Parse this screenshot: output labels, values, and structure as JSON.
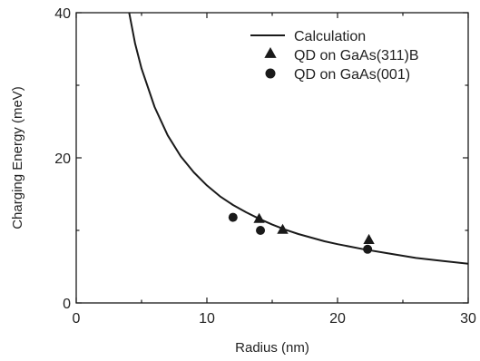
{
  "chart_data": {
    "type": "scatter",
    "xlabel": "Radius (nm)",
    "ylabel": "Charging Energy (meV)",
    "xlim": [
      0,
      30
    ],
    "ylim": [
      0,
      40
    ],
    "x_ticks": [
      "0",
      "10",
      "20",
      "30"
    ],
    "y_ticks": [
      "0",
      "20",
      "40"
    ],
    "grid": false,
    "legend_position": "top-right",
    "series": [
      {
        "name": "Calculation",
        "kind": "line",
        "x": [
          4.0,
          4.5,
          5,
          6,
          7,
          8,
          9,
          10,
          11,
          12,
          13,
          14,
          15,
          16,
          17,
          18,
          19,
          20,
          22,
          24,
          26,
          28,
          30
        ],
        "y": [
          40.5,
          35.8,
          32.3,
          27.0,
          23.1,
          20.2,
          18.0,
          16.2,
          14.7,
          13.5,
          12.5,
          11.6,
          10.8,
          10.1,
          9.5,
          9.0,
          8.5,
          8.1,
          7.4,
          6.8,
          6.2,
          5.8,
          5.4
        ]
      },
      {
        "name": "QD on GaAs(311)B",
        "kind": "marker",
        "marker": "triangle",
        "x": [
          14.0,
          15.8,
          22.4
        ],
        "y": [
          11.6,
          10.1,
          8.7
        ]
      },
      {
        "name": "QD on GaAs(001)",
        "kind": "marker",
        "marker": "circle",
        "x": [
          12.0,
          14.1,
          22.3
        ],
        "y": [
          11.8,
          10.0,
          7.4
        ]
      }
    ]
  },
  "colors": {
    "ink": "#1a1a1a",
    "background": "#ffffff"
  }
}
